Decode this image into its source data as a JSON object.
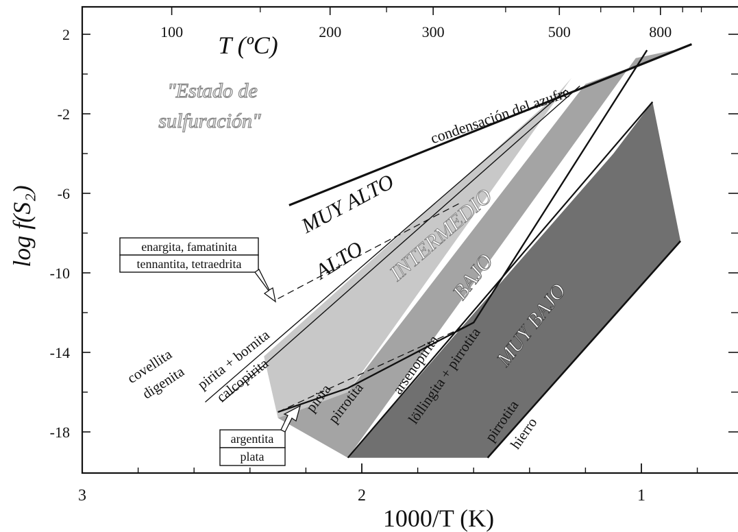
{
  "chart_data": {
    "type": "area",
    "title": "",
    "xlabel": "1000/T (K)",
    "ylabel": "log f(S₂)",
    "xlim": [
      3,
      0.6
    ],
    "ylim": [
      -20,
      3
    ],
    "x_ticks": [
      3,
      2,
      1
    ],
    "y_ticks": [
      2,
      -2,
      -6,
      -10,
      -14,
      -18
    ],
    "top_axis": {
      "label": "T (ºC)",
      "ticks": [
        "100",
        "200",
        "300",
        "500",
        "800"
      ]
    },
    "corner_note": "\"Estado de sulfuración\"",
    "regions": [
      {
        "name": "MUY ALTO",
        "color": "#ffffff",
        "polygon": [
          [
            2.26,
            -6.6
          ],
          [
            0.82,
            1.5
          ],
          [
            0.98,
            0.8
          ],
          [
            1.28,
            -0.9
          ]
        ]
      },
      {
        "name": "ALTO",
        "color": "#ffffff",
        "polygon": [
          [
            2.3,
            -8.4
          ],
          [
            1.28,
            -0.9
          ],
          [
            1.25,
            -0.3
          ]
        ]
      },
      {
        "name": "INTERMEDIO",
        "color": "#c8c8c8",
        "polygon": [
          [
            2.35,
            -14.2
          ],
          [
            2.3,
            -17.3
          ],
          [
            2.05,
            -16.0
          ],
          [
            1.25,
            -0.2
          ],
          [
            1.3,
            -1.0
          ]
        ]
      },
      {
        "name": "BAJO",
        "color": "#a4a4a4",
        "polygon": [
          [
            2.3,
            -17.3
          ],
          [
            2.05,
            -19.3
          ],
          [
            1.02,
            0.8
          ],
          [
            0.85,
            1.3
          ],
          [
            1.2,
            -0.5
          ],
          [
            2.05,
            -16.0
          ]
        ]
      },
      {
        "name": "MUY BAJO",
        "color": "#707070",
        "polygon": [
          [
            2.05,
            -19.3
          ],
          [
            1.55,
            -19.3
          ],
          [
            0.86,
            -8.4
          ],
          [
            0.96,
            -1.4
          ],
          [
            1.1,
            -4.0
          ]
        ]
      }
    ],
    "lines": [
      {
        "label": "condensación del azufre",
        "points": [
          [
            2.26,
            -6.6
          ],
          [
            0.82,
            1.5
          ]
        ]
      },
      {
        "label": "covellita / digenita",
        "points": [
          [
            2.56,
            -16.5
          ],
          [
            1.27,
            -0.8
          ]
        ]
      },
      {
        "label": "pirita + bornita / calcopirita",
        "points": [
          [
            2.5,
            -16.5
          ],
          [
            1.22,
            -0.6
          ]
        ]
      },
      {
        "label": "enargita, famatinita / tennantita, tetraedrita",
        "points": [
          [
            2.3,
            -11.3
          ],
          [
            1.95,
            -8.7
          ],
          [
            1.65,
            -6.5
          ]
        ]
      },
      {
        "label": "pirita / pirrotita",
        "points": [
          [
            2.3,
            -17.0
          ],
          [
            2.05,
            -15.8
          ],
          [
            1.6,
            -12.5
          ],
          [
            0.98,
            1.2
          ]
        ]
      },
      {
        "label": "arsenopirita / löllingita + pirrotita",
        "points": [
          [
            2.05,
            -19.3
          ],
          [
            0.96,
            -1.4
          ]
        ]
      },
      {
        "label": "argentita / plata",
        "points": [
          [
            2.3,
            -17.0
          ],
          [
            1.6,
            -12.5
          ]
        ]
      },
      {
        "label": "pirrotita / hierro",
        "points": [
          [
            1.55,
            -19.3
          ],
          [
            0.86,
            -8.4
          ]
        ]
      }
    ],
    "region_labels": [
      "MUY ALTO",
      "ALTO",
      "INTERMEDIO",
      "BAJO",
      "MUY BAJO"
    ],
    "boundary_labels": {
      "condensacion": "condensación del azufre",
      "covellita": "covellita",
      "digenita": "digenita",
      "pirita_bornita": "pirita + bornita",
      "calcopirita": "calcopirita",
      "pirita": "pirita",
      "pirrotita": "pirrotita",
      "arsenopirita": "arsenopirita",
      "lollingita": "löllingita + pirrotita",
      "pirrotita2": "pirrotita",
      "hierro": "hierro"
    },
    "boxes": {
      "enargita": "enargita, famatinita",
      "tennantita": "tennantita, tetraedrita",
      "argentita": "argentita",
      "plata": "plata"
    },
    "grid": false,
    "legend": "none"
  }
}
